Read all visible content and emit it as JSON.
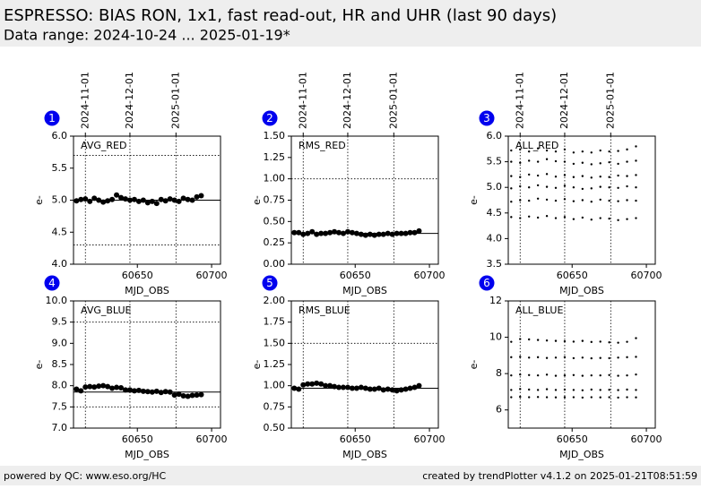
{
  "header": {
    "title": "ESPRESSO: BIAS RON, 1x1, fast read-out, HR and UHR (last 90 days)",
    "subtitle": "Data range: 2024-10-24 ... 2025-01-19*"
  },
  "footer": {
    "left": "powered by QC: www.eso.org/HC",
    "right": "created by trendPlotter v4.1.2 on 2025-01-21T08:51:59"
  },
  "chart_data": [
    {
      "type": "scatter",
      "panel": "1",
      "label": "AVG_RED",
      "ylabel": "e-",
      "xlabel": "MJD_OBS",
      "xlim": [
        60607,
        60706
      ],
      "xticks": [
        60650,
        60700
      ],
      "date_ticks": [
        {
          "value": 60615,
          "label": "2024-11-01"
        },
        {
          "value": 60645,
          "label": "2024-12-01"
        },
        {
          "value": 60676,
          "label": "2025-01-01"
        }
      ],
      "ylim": [
        4,
        6
      ],
      "yticks": [
        {
          "value": 4,
          "label": "4.0"
        },
        {
          "value": 4.5,
          "label": "4.5"
        },
        {
          "value": 5,
          "label": "5.0"
        },
        {
          "value": 5.5,
          "label": "5.5"
        },
        {
          "value": 6,
          "label": "6.0"
        }
      ],
      "limits": [
        5.7,
        4.3
      ],
      "reference": 5.0,
      "x": [
        60609,
        60612,
        60615,
        60618,
        60621,
        60624,
        60627,
        60630,
        60633,
        60636,
        60639,
        60642,
        60645,
        60648,
        60651,
        60654,
        60657,
        60660,
        60663,
        60666,
        60669,
        60672,
        60675,
        60678,
        60681,
        60684,
        60687,
        60690,
        60693
      ],
      "series": [
        {
          "color": "#000000",
          "values": [
            4.99,
            5.01,
            5.02,
            4.98,
            5.03,
            5.0,
            4.97,
            4.99,
            5.01,
            5.08,
            5.04,
            5.02,
            5.0,
            5.01,
            4.98,
            5.0,
            4.96,
            4.98,
            4.95,
            5.01,
            4.99,
            5.02,
            5.0,
            4.98,
            5.03,
            5.01,
            5.0,
            5.05,
            5.07
          ]
        }
      ]
    },
    {
      "type": "scatter",
      "panel": "2",
      "label": "RMS_RED",
      "ylabel": "e-",
      "xlabel": "MJD_OBS",
      "xlim": [
        60607,
        60706
      ],
      "xticks": [
        60650,
        60700
      ],
      "date_ticks": [
        {
          "value": 60615,
          "label": "2024-11-01"
        },
        {
          "value": 60645,
          "label": "2024-12-01"
        },
        {
          "value": 60676,
          "label": "2025-01-01"
        }
      ],
      "ylim": [
        0,
        1.5
      ],
      "yticks": [
        {
          "value": 0,
          "label": "0.00"
        },
        {
          "value": 0.25,
          "label": "0.25"
        },
        {
          "value": 0.5,
          "label": "0.50"
        },
        {
          "value": 0.75,
          "label": "0.75"
        },
        {
          "value": 1,
          "label": "1.00"
        },
        {
          "value": 1.25,
          "label": "1.25"
        },
        {
          "value": 1.5,
          "label": "1.50"
        }
      ],
      "limits": [
        1.0
      ],
      "reference": 0.36,
      "x": [
        60609,
        60612,
        60615,
        60618,
        60621,
        60624,
        60627,
        60630,
        60633,
        60636,
        60639,
        60642,
        60645,
        60648,
        60651,
        60654,
        60657,
        60660,
        60663,
        60666,
        60669,
        60672,
        60675,
        60678,
        60681,
        60684,
        60687,
        60690,
        60693
      ],
      "series": [
        {
          "color": "#000000",
          "values": [
            0.37,
            0.37,
            0.35,
            0.36,
            0.38,
            0.35,
            0.36,
            0.36,
            0.37,
            0.38,
            0.37,
            0.36,
            0.38,
            0.37,
            0.36,
            0.35,
            0.34,
            0.35,
            0.34,
            0.35,
            0.35,
            0.36,
            0.35,
            0.36,
            0.36,
            0.36,
            0.37,
            0.37,
            0.39
          ]
        }
      ]
    },
    {
      "type": "scatter",
      "panel": "3",
      "label": "ALL_RED",
      "ylabel": "e-",
      "xlabel": "MJD_OBS",
      "xlim": [
        60607,
        60706
      ],
      "xticks": [
        60650,
        60700
      ],
      "date_ticks": [
        {
          "value": 60615,
          "label": "2024-11-01"
        },
        {
          "value": 60645,
          "label": "2024-12-01"
        },
        {
          "value": 60676,
          "label": "2025-01-01"
        }
      ],
      "ylim": [
        3.5,
        6
      ],
      "yticks": [
        {
          "value": 3.5,
          "label": "3.5"
        },
        {
          "value": 4,
          "label": "4.0"
        },
        {
          "value": 4.5,
          "label": "4.5"
        },
        {
          "value": 5,
          "label": "5.0"
        },
        {
          "value": 5.5,
          "label": "5.5"
        },
        {
          "value": 6,
          "label": "6.0"
        }
      ],
      "small": true,
      "x": [
        60609,
        60615,
        60621,
        60627,
        60633,
        60639,
        60645,
        60651,
        60657,
        60663,
        60669,
        60675,
        60681,
        60687,
        60693
      ],
      "series": [
        {
          "color": "#000000",
          "values": [
            4.42,
            4.4,
            4.43,
            4.41,
            4.44,
            4.4,
            4.42,
            4.38,
            4.41,
            4.37,
            4.4,
            4.39,
            4.36,
            4.38,
            4.4
          ]
        },
        {
          "color": "#000000",
          "values": [
            4.72,
            4.75,
            4.74,
            4.78,
            4.76,
            4.74,
            4.77,
            4.73,
            4.75,
            4.72,
            4.76,
            4.74,
            4.73,
            4.75,
            4.74
          ]
        },
        {
          "color": "#000000",
          "values": [
            4.98,
            5.02,
            5.0,
            5.04,
            5.01,
            4.99,
            5.03,
            5.0,
            4.97,
            4.98,
            5.01,
            5.0,
            4.99,
            5.02,
            5.0
          ]
        },
        {
          "color": "#000000",
          "values": [
            5.22,
            5.2,
            5.25,
            5.23,
            5.26,
            5.21,
            5.24,
            5.2,
            5.22,
            5.19,
            5.21,
            5.2,
            5.23,
            5.22,
            5.24
          ]
        },
        {
          "color": "#000000",
          "values": [
            5.5,
            5.48,
            5.52,
            5.5,
            5.55,
            5.51,
            5.5,
            5.46,
            5.48,
            5.45,
            5.47,
            5.49,
            5.46,
            5.5,
            5.52
          ]
        },
        {
          "color": "#000000",
          "values": [
            5.72,
            5.74,
            5.7,
            5.76,
            5.72,
            5.7,
            5.74,
            5.68,
            5.7,
            5.68,
            5.72,
            5.7,
            5.71,
            5.74,
            5.8
          ]
        }
      ]
    },
    {
      "type": "scatter",
      "panel": "4",
      "label": "AVG_BLUE",
      "ylabel": "e-",
      "xlabel": "MJD_OBS",
      "xlim": [
        60607,
        60706
      ],
      "xticks": [
        60650,
        60700
      ],
      "vlines": [
        60615,
        60645,
        60676
      ],
      "ylim": [
        7,
        10
      ],
      "yticks": [
        {
          "value": 7,
          "label": "7.0"
        },
        {
          "value": 7.5,
          "label": "7.5"
        },
        {
          "value": 8,
          "label": "8.0"
        },
        {
          "value": 8.5,
          "label": "8.5"
        },
        {
          "value": 9,
          "label": "9.0"
        },
        {
          "value": 9.5,
          "label": "9.5"
        },
        {
          "value": 10,
          "label": "10.0"
        }
      ],
      "limits": [
        9.5,
        7.5
      ],
      "reference": 7.85,
      "x": [
        60609,
        60612,
        60615,
        60618,
        60621,
        60624,
        60627,
        60630,
        60633,
        60636,
        60639,
        60642,
        60645,
        60648,
        60651,
        60654,
        60657,
        60660,
        60663,
        60666,
        60669,
        60672,
        60675,
        60678,
        60681,
        60684,
        60687,
        60690,
        60693
      ],
      "series": [
        {
          "color": "#000000",
          "values": [
            7.92,
            7.88,
            7.97,
            7.98,
            7.97,
            7.99,
            8.0,
            7.98,
            7.94,
            7.96,
            7.95,
            7.9,
            7.9,
            7.88,
            7.89,
            7.87,
            7.86,
            7.85,
            7.87,
            7.84,
            7.86,
            7.85,
            7.78,
            7.8,
            7.76,
            7.75,
            7.77,
            7.78,
            7.79
          ]
        }
      ]
    },
    {
      "type": "scatter",
      "panel": "5",
      "label": "RMS_BLUE",
      "ylabel": "e-",
      "xlabel": "MJD_OBS",
      "xlim": [
        60607,
        60706
      ],
      "xticks": [
        60650,
        60700
      ],
      "vlines": [
        60615,
        60645,
        60676
      ],
      "ylim": [
        0.5,
        2
      ],
      "yticks": [
        {
          "value": 0.5,
          "label": "0.50"
        },
        {
          "value": 0.75,
          "label": "0.75"
        },
        {
          "value": 1,
          "label": "1.00"
        },
        {
          "value": 1.25,
          "label": "1.25"
        },
        {
          "value": 1.5,
          "label": "1.50"
        },
        {
          "value": 1.75,
          "label": "1.75"
        },
        {
          "value": 2,
          "label": "2.00"
        }
      ],
      "limits": [
        1.5
      ],
      "reference": 0.97,
      "x": [
        60609,
        60612,
        60615,
        60618,
        60621,
        60624,
        60627,
        60630,
        60633,
        60636,
        60639,
        60642,
        60645,
        60648,
        60651,
        60654,
        60657,
        60660,
        60663,
        60666,
        60669,
        60672,
        60675,
        60678,
        60681,
        60684,
        60687,
        60690,
        60693
      ],
      "series": [
        {
          "color": "#000000",
          "values": [
            0.97,
            0.96,
            1.01,
            1.02,
            1.02,
            1.03,
            1.02,
            1.0,
            1.0,
            0.99,
            0.98,
            0.98,
            0.98,
            0.97,
            0.97,
            0.98,
            0.97,
            0.96,
            0.96,
            0.97,
            0.95,
            0.96,
            0.95,
            0.94,
            0.95,
            0.96,
            0.97,
            0.98,
            1.0
          ]
        }
      ]
    },
    {
      "type": "scatter",
      "panel": "6",
      "label": "ALL_BLUE",
      "ylabel": "e-",
      "xlabel": "MJD_OBS",
      "xlim": [
        60607,
        60706
      ],
      "xticks": [
        60650,
        60700
      ],
      "vlines": [
        60615,
        60645,
        60676
      ],
      "ylim": [
        5,
        12
      ],
      "yticks": [
        6,
        8,
        10,
        12
      ],
      "small": true,
      "x": [
        60609,
        60615,
        60621,
        60627,
        60633,
        60639,
        60645,
        60651,
        60657,
        60663,
        60669,
        60675,
        60681,
        60687,
        60693
      ],
      "series": [
        {
          "color": "#000000",
          "values": [
            6.7,
            6.72,
            6.7,
            6.71,
            6.7,
            6.69,
            6.7,
            6.7,
            6.68,
            6.7,
            6.69,
            6.7,
            6.68,
            6.7,
            6.69
          ]
        },
        {
          "color": "#000000",
          "values": [
            7.1,
            7.15,
            7.12,
            7.1,
            7.14,
            7.1,
            7.12,
            7.1,
            7.08,
            7.12,
            7.1,
            7.11,
            7.09,
            7.12,
            7.1
          ]
        },
        {
          "color": "#000000",
          "values": [
            7.9,
            7.95,
            7.92,
            7.9,
            7.94,
            7.88,
            7.9,
            7.92,
            7.88,
            7.9,
            7.9,
            7.92,
            7.88,
            7.9,
            7.95
          ]
        },
        {
          "color": "#000000",
          "values": [
            8.9,
            8.92,
            8.88,
            8.9,
            8.86,
            8.88,
            8.9,
            8.85,
            8.88,
            8.84,
            8.86,
            8.85,
            8.88,
            8.9,
            8.92
          ]
        },
        {
          "color": "#000000",
          "values": [
            9.75,
            9.9,
            9.88,
            9.85,
            9.82,
            9.8,
            9.78,
            9.76,
            9.8,
            9.74,
            9.76,
            9.72,
            9.7,
            9.75,
            9.95
          ]
        }
      ]
    }
  ]
}
